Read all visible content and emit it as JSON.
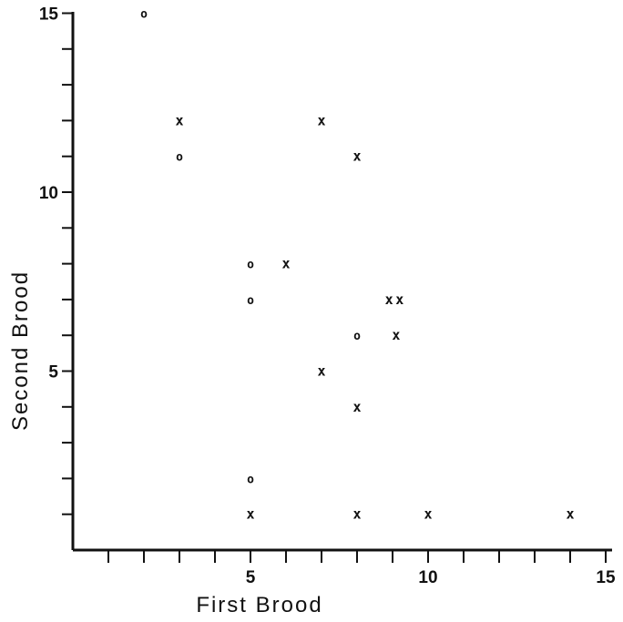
{
  "chart_data": {
    "type": "scatter",
    "title": "",
    "xlabel": "First Brood",
    "ylabel": "Second Brood",
    "xlim": [
      0,
      15
    ],
    "ylim": [
      0,
      15
    ],
    "x_ticks": [
      1,
      2,
      3,
      4,
      5,
      6,
      7,
      8,
      9,
      10,
      11,
      12,
      13,
      14,
      15
    ],
    "y_ticks": [
      1,
      2,
      3,
      4,
      5,
      6,
      7,
      8,
      9,
      10,
      11,
      12,
      13,
      14,
      15
    ],
    "x_tick_labels": [
      {
        "value": 5,
        "label": "5"
      },
      {
        "value": 10,
        "label": "10"
      },
      {
        "value": 15,
        "label": "15"
      }
    ],
    "y_tick_labels": [
      {
        "value": 5,
        "label": "5"
      },
      {
        "value": 10,
        "label": "10"
      },
      {
        "value": 15,
        "label": "15"
      }
    ],
    "grid": false,
    "series": [
      {
        "marker": "x",
        "symbol": "x",
        "points": [
          [
            3,
            12
          ],
          [
            7,
            12
          ],
          [
            8,
            11
          ],
          [
            6,
            8
          ],
          [
            8.9,
            7
          ],
          [
            9.2,
            7
          ],
          [
            9.1,
            6
          ],
          [
            7,
            5
          ],
          [
            8,
            4
          ],
          [
            5,
            1
          ],
          [
            8,
            1
          ],
          [
            10,
            1
          ],
          [
            14,
            1
          ]
        ]
      },
      {
        "marker": "o",
        "symbol": "o",
        "points": [
          [
            2,
            15
          ],
          [
            3,
            11
          ],
          [
            5,
            8
          ],
          [
            5,
            7
          ],
          [
            8,
            6
          ],
          [
            5,
            2
          ]
        ]
      }
    ]
  }
}
